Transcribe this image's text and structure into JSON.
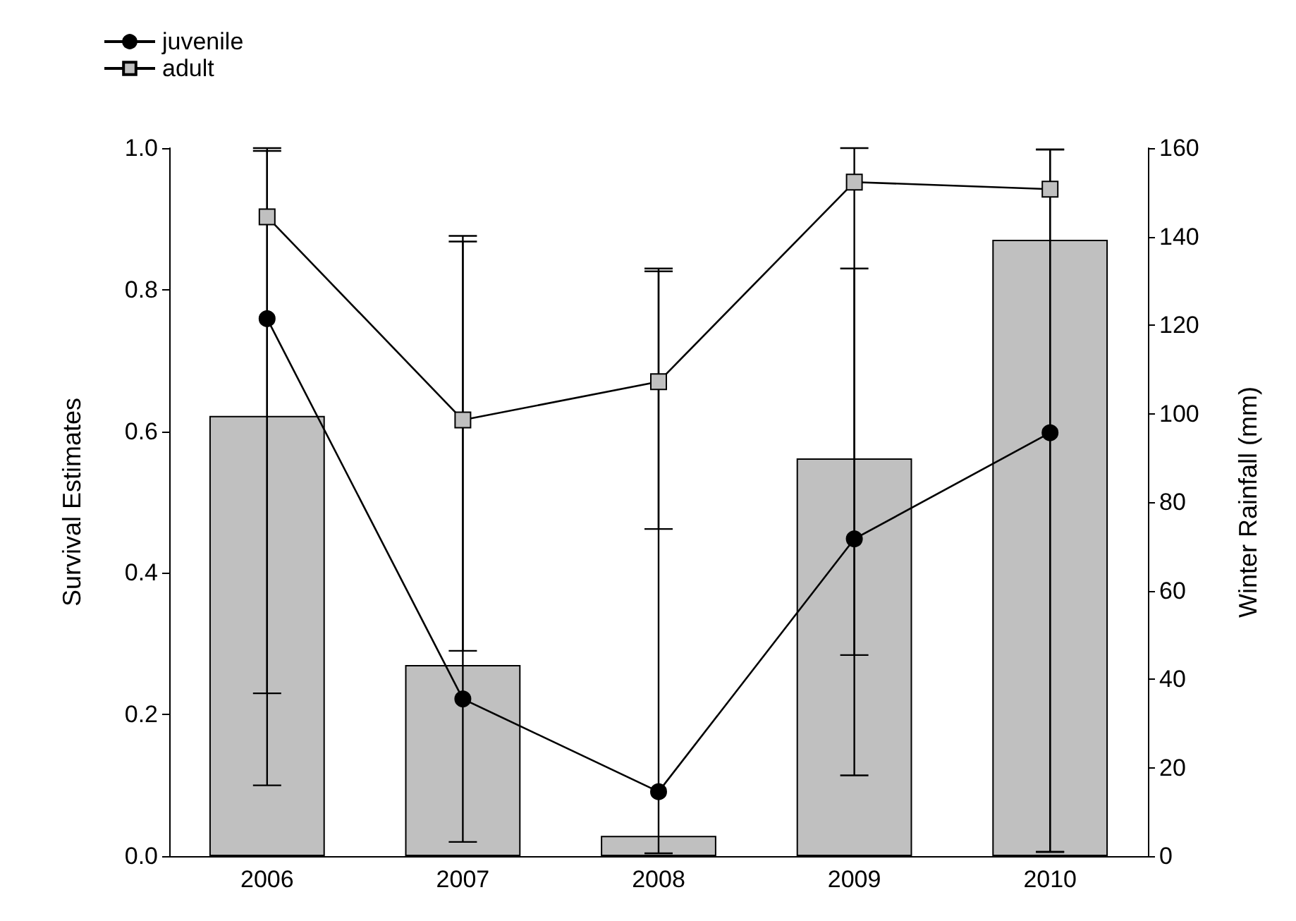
{
  "chart_data": {
    "type": "bar",
    "categories": [
      "2006",
      "2007",
      "2008",
      "2009",
      "2010"
    ],
    "ylabel": "Survival Estimates",
    "y2label": "Winter Rainfall (mm)",
    "ylim": [
      0,
      1
    ],
    "yticks": [
      {
        "value": 0,
        "label": "0.0"
      },
      {
        "value": 0.2,
        "label": "0.2"
      },
      {
        "value": 0.4,
        "label": "0.4"
      },
      {
        "value": 0.6,
        "label": "0.6"
      },
      {
        "value": 0.8,
        "label": "0.8"
      },
      {
        "value": 1,
        "label": "1.0"
      }
    ],
    "y2lim": [
      0,
      160
    ],
    "y2ticks": [
      0,
      20,
      40,
      60,
      80,
      100,
      120,
      140,
      160
    ],
    "grid": false,
    "legend": "top left",
    "series": [
      {
        "axis": "y2",
        "color": "#c0c0c0",
        "values": [
          99.5,
          43.2,
          4.6,
          89.9,
          139.3
        ]
      },
      {
        "type": "line",
        "name": "juvenile",
        "color": "#000000",
        "marker": "circle",
        "values": [
          0.759,
          0.222,
          0.091,
          0.448,
          0.598
        ],
        "errors": [
          [
            0.23,
            0.996
          ],
          [
            0.02,
            0.868
          ],
          [
            0.004,
            0.826
          ],
          [
            0.114,
            0.83
          ],
          [
            0.006,
            0.998
          ]
        ]
      },
      {
        "type": "line",
        "name": "adult",
        "color": "#c0c0c0",
        "marker": "square",
        "values": [
          0.903,
          0.616,
          0.67,
          0.952,
          0.942
        ],
        "errors": [
          [
            0.1,
            1.0
          ],
          [
            0.29,
            0.876
          ],
          [
            0.462,
            0.83
          ],
          [
            0.284,
            1.0
          ],
          [
            0.006,
            0.998
          ]
        ]
      }
    ]
  }
}
